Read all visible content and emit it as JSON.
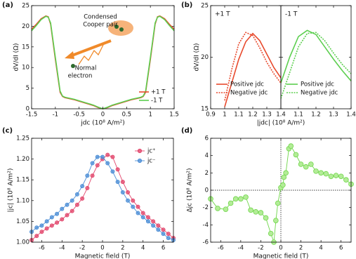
{
  "chart_data": [
    {
      "type": "line",
      "panel_label": "(a)",
      "xlabel": "jdc (10⁸ A/m²)",
      "ylabel": "dV/dI (Ω)",
      "xlim": [
        -1.5,
        1.5
      ],
      "xticks": [
        -1.5,
        -1,
        -0.5,
        0,
        0.5,
        1,
        1.5
      ],
      "ylim": [
        0,
        25
      ],
      "yticks": [
        0,
        5,
        10,
        15,
        20,
        25
      ],
      "legend": "lower right",
      "annotations": [
        [
          "Condensed",
          "Cooper pair"
        ],
        [
          "Normal",
          "electron"
        ]
      ],
      "x": [
        -1.5,
        -1.4,
        -1.3,
        -1.2,
        -1.15,
        -1.1,
        -1.0,
        -0.9,
        -0.85,
        -0.8,
        -0.6,
        -0.4,
        -0.2,
        -0.1,
        0,
        0.1,
        0.2,
        0.4,
        0.6,
        0.8,
        0.85,
        0.9,
        1.0,
        1.1,
        1.15,
        1.2,
        1.3,
        1.4,
        1.5
      ],
      "series": [
        {
          "name": "+1 T",
          "color": "#e8492c",
          "values": [
            19.3,
            20.5,
            21.8,
            22.5,
            22.3,
            20.5,
            12,
            4,
            3,
            2.7,
            2.2,
            1.5,
            0.8,
            0.3,
            0,
            0.3,
            0.8,
            1.5,
            2.2,
            2.7,
            3,
            4,
            12,
            20.5,
            22.3,
            22.5,
            21.8,
            20.5,
            19.3
          ]
        },
        {
          "name": "-1 T",
          "color": "#5ccf4f",
          "values": [
            18.9,
            20.2,
            21.6,
            22.4,
            22.2,
            20.8,
            12.5,
            4.3,
            3.1,
            2.8,
            2.3,
            1.6,
            0.9,
            0.4,
            0,
            0.4,
            0.9,
            1.6,
            2.3,
            2.8,
            3.1,
            4.3,
            12.5,
            20.8,
            22.2,
            22.4,
            21.6,
            20.2,
            18.9
          ]
        }
      ]
    },
    {
      "type": "line-split",
      "panel_label": "(b)",
      "xlabel": "|jdc| (10⁸ A/m²)",
      "ylabel": "dV/dI (Ω)",
      "ylim": [
        15,
        25
      ],
      "yticks": [
        15,
        20,
        25
      ],
      "legend": "lower right",
      "subplots": [
        {
          "title": "+1 T",
          "xlim": [
            0.9,
            1.4
          ],
          "xticks": [
            0.9,
            1,
            1.1,
            1.2,
            1.3,
            1.4
          ],
          "x": [
            1.0,
            1.05,
            1.1,
            1.15,
            1.2,
            1.25,
            1.3,
            1.35,
            1.4
          ],
          "series": [
            {
              "name": "Positive jdc",
              "color": "#e8492c",
              "dash": "solid",
              "values": [
                15.2,
                17.5,
                19.8,
                21.5,
                22.3,
                21.6,
                20.3,
                19,
                18.0
              ]
            },
            {
              "name": "Negative jdc",
              "color": "#e8492c",
              "dash": "dotted",
              "values": [
                15.8,
                18.8,
                21.3,
                22.4,
                22.1,
                20.9,
                19.5,
                18.4,
                17.5
              ]
            }
          ]
        },
        {
          "title": "-1 T",
          "xlim": [
            1.0,
            1.4
          ],
          "xticks": [
            1.1,
            1.2,
            1.3,
            1.4
          ],
          "x": [
            1.0,
            1.05,
            1.1,
            1.15,
            1.2,
            1.25,
            1.3,
            1.35,
            1.4
          ],
          "series": [
            {
              "name": "Positive jdc",
              "color": "#5ccf4f",
              "dash": "solid",
              "values": [
                17.5,
                20,
                22,
                22.6,
                22.2,
                21,
                19.8,
                18.7,
                17.7
              ]
            },
            {
              "name": "Negative jdc",
              "color": "#5ccf4f",
              "dash": "dotted",
              "values": [
                16,
                18.5,
                21,
                22.3,
                22.4,
                21.6,
                20.4,
                19.3,
                18.4
              ]
            }
          ]
        }
      ]
    },
    {
      "type": "line-marker",
      "panel_label": "(c)",
      "xlabel": "Magnetic field (T)",
      "ylabel": "|jc| (10⁸ A/m²)",
      "xlim": [
        -7,
        7
      ],
      "xticks": [
        -6,
        -4,
        -2,
        0,
        2,
        4,
        6
      ],
      "ylim": [
        1.0,
        1.25
      ],
      "yticks": [
        {
          "value": 1.0,
          "label": "1.00"
        },
        {
          "value": 1.05,
          "label": "1.05"
        },
        {
          "value": 1.1,
          "label": "1.10"
        },
        {
          "value": 1.15,
          "label": "1.15"
        },
        {
          "value": 1.2,
          "label": "1.20"
        },
        {
          "value": 1.25,
          "label": "1.25"
        }
      ],
      "legend": "upper right",
      "x": [
        -7,
        -6.5,
        -6,
        -5.5,
        -5,
        -4.5,
        -4,
        -3.5,
        -3,
        -2.5,
        -2,
        -1.5,
        -1,
        -0.5,
        0,
        0.5,
        1,
        1.5,
        2,
        2.5,
        3,
        3.5,
        4,
        4.5,
        5,
        5.5,
        6,
        6.5,
        7
      ],
      "series": [
        {
          "name": "jc⁺",
          "color": "#e2456b",
          "values": [
            1.005,
            1.015,
            1.025,
            1.033,
            1.04,
            1.047,
            1.055,
            1.065,
            1.075,
            1.09,
            1.105,
            1.13,
            1.16,
            1.185,
            1.2,
            1.21,
            1.205,
            1.175,
            1.145,
            1.12,
            1.1,
            1.085,
            1.07,
            1.06,
            1.05,
            1.04,
            1.03,
            1.02,
            1.01
          ]
        },
        {
          "name": "jc⁻",
          "color": "#4b8dd6",
          "values": [
            1.025,
            1.035,
            1.04,
            1.05,
            1.06,
            1.068,
            1.08,
            1.09,
            1.1,
            1.115,
            1.135,
            1.16,
            1.19,
            1.205,
            1.205,
            1.19,
            1.17,
            1.145,
            1.12,
            1.1,
            1.085,
            1.07,
            1.06,
            1.05,
            1.04,
            1.03,
            1.02,
            1.01,
            1.005
          ]
        }
      ]
    },
    {
      "type": "line-marker",
      "panel_label": "(d)",
      "xlabel": "Magnetic field (T)",
      "ylabel": "Δjc (10⁸ A/m²)",
      "xlim": [
        -7,
        7
      ],
      "xticks": [
        -6,
        -4,
        -2,
        0,
        2,
        4,
        6
      ],
      "ylim": [
        -6,
        6
      ],
      "yticks": [
        -6,
        -4,
        -2,
        0,
        2,
        4,
        6
      ],
      "zero_lines": true,
      "x": [
        -7,
        -6.3,
        -5.5,
        -5,
        -4.5,
        -4,
        -3.5,
        -3,
        -2.5,
        -2,
        -1.5,
        -1,
        -0.7,
        -0.5,
        -0.3,
        0,
        0.2,
        0.3,
        0.5,
        0.8,
        1,
        1.5,
        2,
        2.5,
        3,
        3.5,
        4,
        4.5,
        5,
        5.5,
        6,
        6.5,
        7
      ],
      "series": [
        {
          "color": "#6fd64a",
          "values": [
            -1,
            -2.1,
            -2.2,
            -1.5,
            -1.0,
            -1.0,
            -0.8,
            -2.3,
            -2.5,
            -2.6,
            -3.2,
            -5.0,
            -6.0,
            -3.5,
            -1.5,
            0.3,
            0.6,
            1.5,
            2.0,
            4.8,
            5.1,
            4.1,
            3.0,
            2.7,
            3.0,
            2.2,
            2.0,
            1.9,
            1.6,
            1.7,
            1.6,
            1.2,
            0.7
          ]
        }
      ]
    }
  ]
}
